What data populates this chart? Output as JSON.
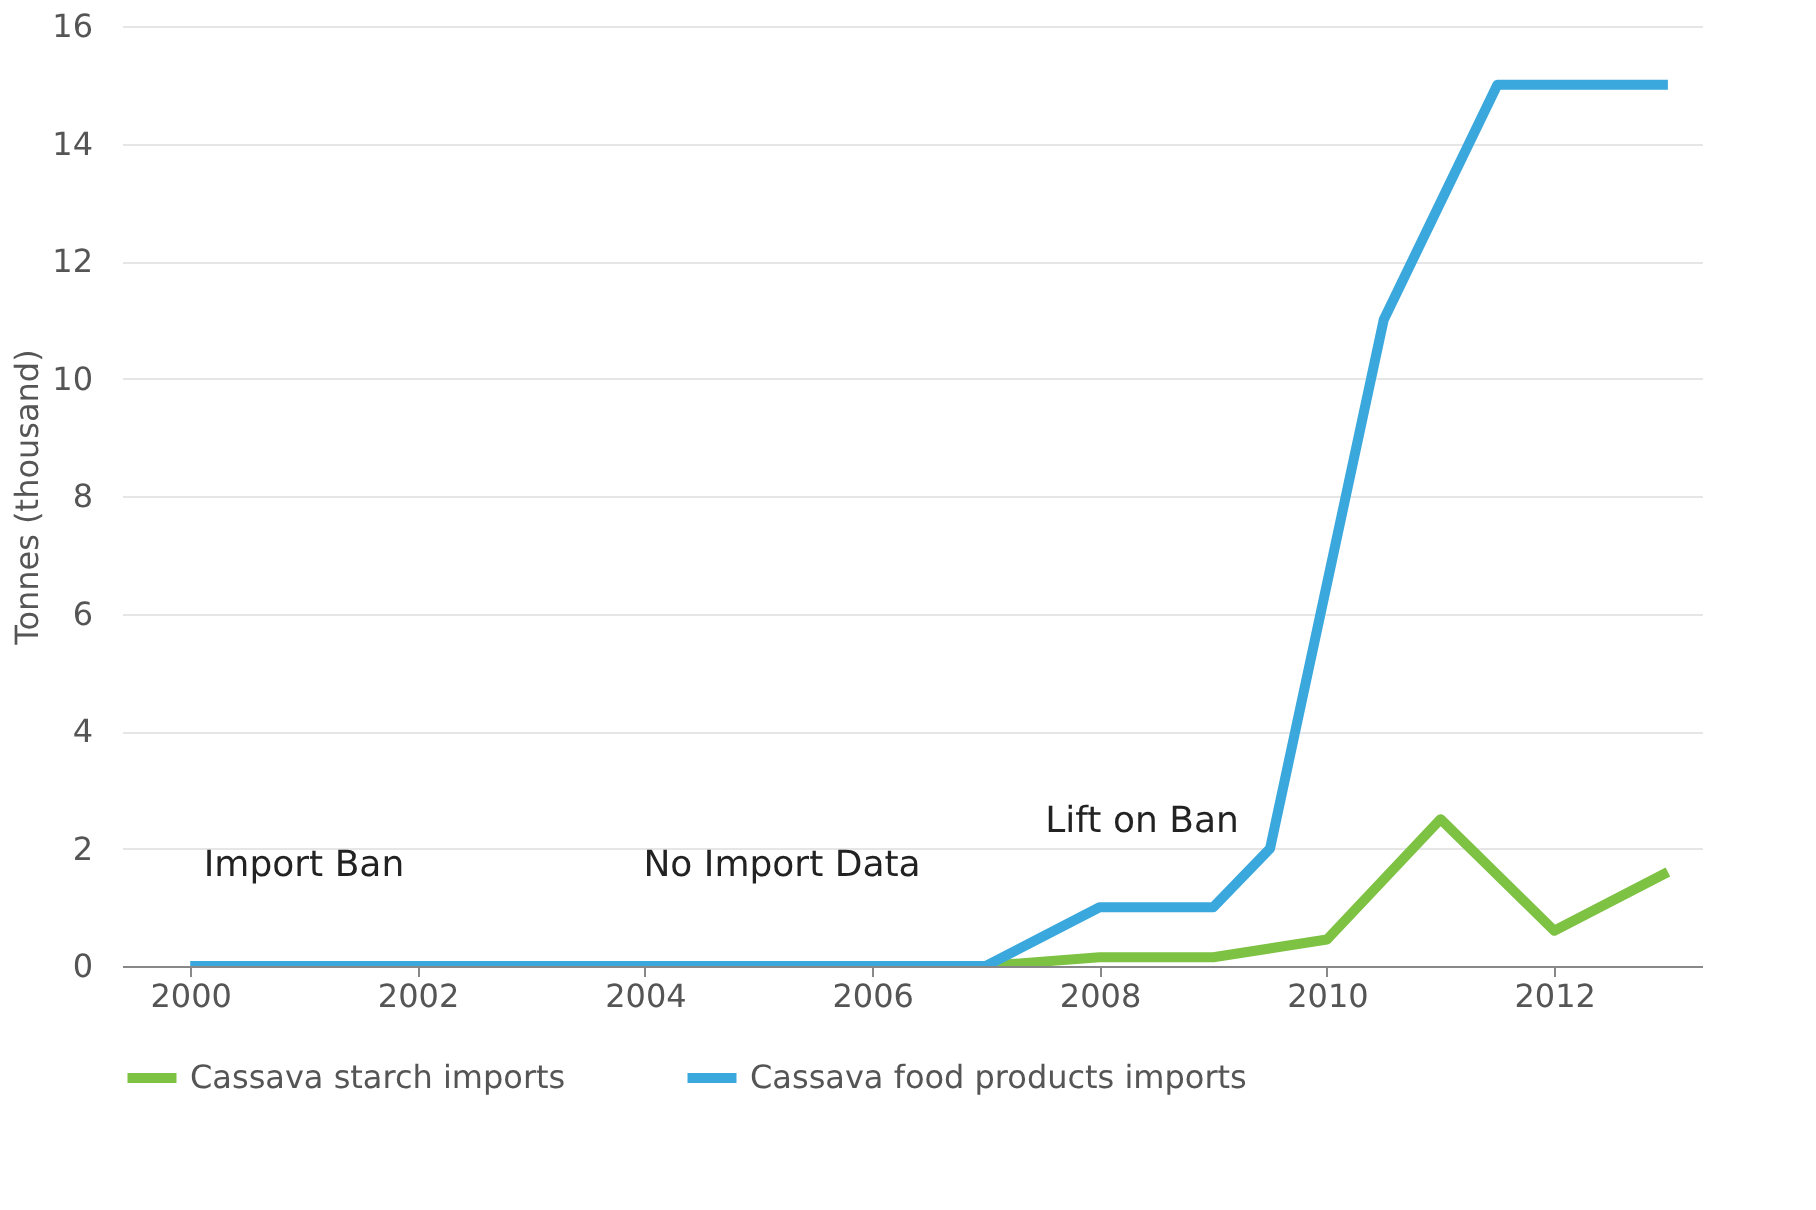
{
  "chart_data": {
    "type": "line",
    "ylabel": "Tonnes (thousand)",
    "xlim": [
      1999.4,
      2013.3
    ],
    "xticks": [
      2000,
      2002,
      2004,
      2006,
      2008,
      2010,
      2012
    ],
    "ylim": [
      0,
      16
    ],
    "yticks": [
      0,
      2,
      4,
      6,
      8,
      10,
      12,
      14,
      16
    ],
    "grid": "y",
    "legend": "bottom",
    "marker": "none",
    "line_style": "solid",
    "series": [
      {
        "name": "Cassava starch imports",
        "color": "#7dc242",
        "x": [
          2007,
          2008,
          2009,
          2010,
          2011,
          2012,
          2013
        ],
        "values": [
          0,
          0.15,
          0.15,
          0.45,
          2.5,
          0.6,
          1.6
        ]
      },
      {
        "name": "Cassava food products imports",
        "color": "#3aa8dc",
        "x": [
          2000,
          2007,
          2008,
          2009,
          2009.5,
          2010.5,
          2011.5,
          2013
        ],
        "values": [
          0,
          0,
          1,
          1,
          2,
          11,
          15,
          15
        ]
      }
    ],
    "annotations": [
      "Import Ban",
      "No Import Data",
      "Lift on Ban"
    ]
  }
}
